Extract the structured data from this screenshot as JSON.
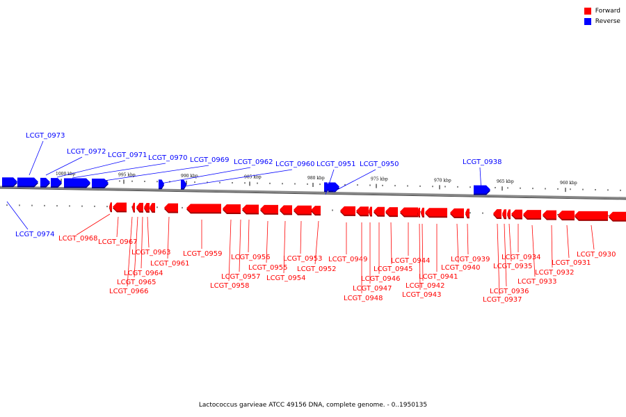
{
  "legend": [
    {
      "label": "Forward",
      "color": "#ff0000"
    },
    {
      "label": "Reverse",
      "color": "#0000ff"
    }
  ],
  "caption": "Lactococcus garvieae ATCC 49156 DNA, complete genome. - 0..1950135",
  "colors": {
    "forward": "#ff0000",
    "reverse": "#0000ff",
    "backbone": "#888888"
  },
  "scale_ticks": [
    "1000 kbp",
    "995 kbp",
    "990 kbp",
    "985 kbp",
    "980 kbp",
    "975 kbp",
    "970 kbp",
    "965 kbp",
    "960 kbp"
  ],
  "reverse_genes": [
    "LCGT_0974",
    "LCGT_0973",
    "LCGT_0972",
    "LCGT_0971",
    "LCGT_0970",
    "LCGT_0969",
    "LCGT_0962",
    "LCGT_0960",
    "LCGT_0951",
    "LCGT_0950",
    "LCGT_0938"
  ],
  "forward_genes": [
    "LCGT_0968",
    "LCGT_0967",
    "LCGT_0966",
    "LCGT_0965",
    "LCGT_0964",
    "LCGT_0963",
    "LCGT_0961",
    "LCGT_0959",
    "LCGT_0958",
    "LCGT_0957",
    "LCGT_0956",
    "LCGT_0955",
    "LCGT_0954",
    "LCGT_0953",
    "LCGT_0952",
    "LCGT_0949",
    "LCGT_0948",
    "LCGT_0947",
    "LCGT_0946",
    "LCGT_0945",
    "LCGT_0944",
    "LCGT_0943",
    "LCGT_0942",
    "LCGT_0941",
    "LCGT_0940",
    "LCGT_0939",
    "LCGT_0937",
    "LCGT_0936",
    "LCGT_0935",
    "LCGT_0934",
    "LCGT_0933",
    "LCGT_0932",
    "LCGT_0931",
    "LCGT_0930"
  ]
}
